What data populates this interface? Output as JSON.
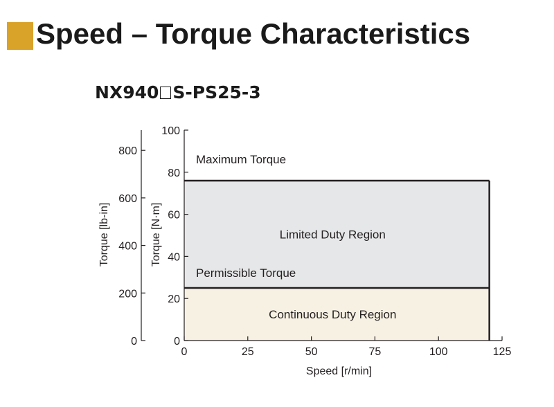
{
  "header": {
    "title": "Speed – Torque Characteristics",
    "model_prefix": "NX940",
    "model_suffix": "S-PS25-3",
    "accent_color": "#d9a228"
  },
  "chart_data": {
    "type": "area",
    "xlabel": "Speed [r/min]",
    "ylabel": "Torque [N·m]",
    "ylabel_secondary": "Torque [lb-in]",
    "xlim": [
      0,
      125
    ],
    "ylim": [
      0,
      100
    ],
    "ylim_secondary": [
      0,
      885
    ],
    "x_ticks": [
      0,
      25,
      50,
      75,
      100,
      125
    ],
    "y_ticks": [
      0,
      20,
      40,
      60,
      80,
      100
    ],
    "y_ticks_secondary": [
      0,
      200,
      400,
      600,
      800
    ],
    "grid": false,
    "regions": [
      {
        "name": "Limited Duty Region",
        "x": [
          0,
          120
        ],
        "y": [
          25,
          76
        ],
        "color": "#e6e7e8"
      },
      {
        "name": "Continuous Duty Region",
        "x": [
          0,
          120
        ],
        "y": [
          0,
          25
        ],
        "color": "#f7f1e3"
      }
    ],
    "series": [
      {
        "name": "Maximum Torque",
        "x": [
          0,
          120
        ],
        "y": [
          76,
          76
        ]
      },
      {
        "name": "Permissible Torque",
        "x": [
          0,
          120
        ],
        "y": [
          25,
          25
        ]
      }
    ]
  }
}
